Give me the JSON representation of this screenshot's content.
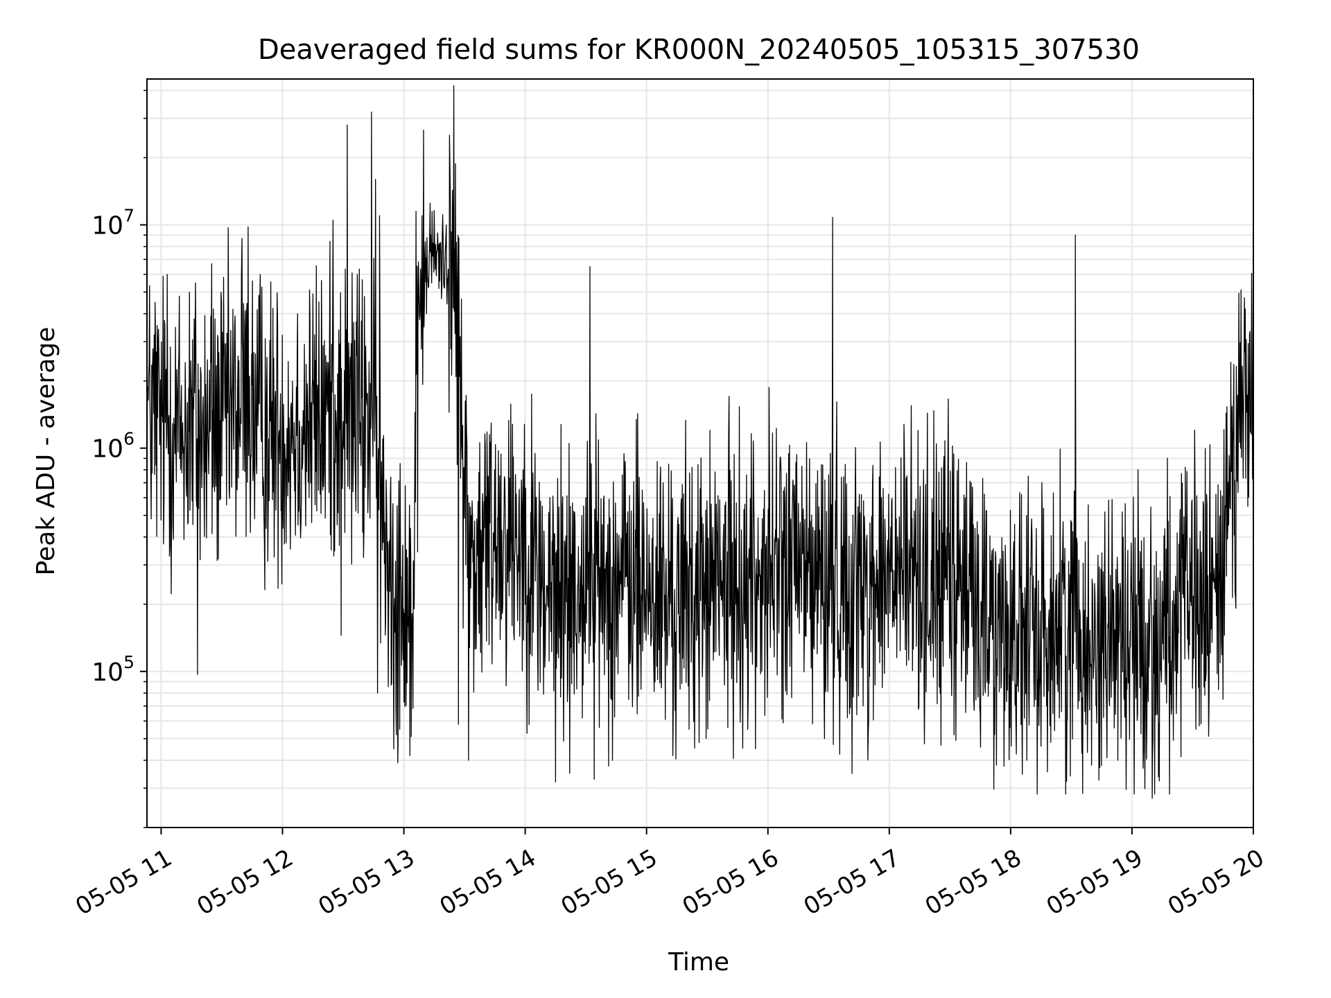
{
  "chart_data": {
    "type": "line",
    "title": "Deaveraged field sums for KR000N_20240505_105315_307530",
    "xlabel": "Time",
    "ylabel": "Peak ADU - average",
    "yscale": "log",
    "xlim": [
      "2024-05-05 10:53",
      "2024-05-05 20:00"
    ],
    "ylim": [
      20000,
      45000000
    ],
    "x_ticks": [
      "05-05 11",
      "05-05 12",
      "05-05 13",
      "05-05 14",
      "05-05 15",
      "05-05 16",
      "05-05 17",
      "05-05 18",
      "05-05 19",
      "05-05 20"
    ],
    "x_tick_times": [
      "2024-05-05 11:00",
      "2024-05-05 12:00",
      "2024-05-05 13:00",
      "2024-05-05 14:00",
      "2024-05-05 15:00",
      "2024-05-05 16:00",
      "2024-05-05 17:00",
      "2024-05-05 18:00",
      "2024-05-05 19:00",
      "2024-05-05 20:00"
    ],
    "y_ticks": [
      {
        "base": "10",
        "exp": "5",
        "value": 100000
      },
      {
        "base": "10",
        "exp": "6",
        "value": 1000000
      },
      {
        "base": "10",
        "exp": "7",
        "value": 10000000
      }
    ],
    "grid": true,
    "line_color": "#000000",
    "series": [
      {
        "x": [
          "2024-05-05 10:53",
          "2024-05-05 11:00",
          "2024-05-05 11:10",
          "2024-05-05 11:20",
          "2024-05-05 11:30",
          "2024-05-05 11:42",
          "2024-05-05 11:50",
          "2024-05-05 12:00",
          "2024-05-05 12:10",
          "2024-05-05 12:20",
          "2024-05-05 12:30",
          "2024-05-05 12:40",
          "2024-05-05 12:45",
          "2024-05-05 12:48",
          "2024-05-05 12:55",
          "2024-05-05 13:00",
          "2024-05-05 13:05",
          "2024-05-05 13:08",
          "2024-05-05 13:15",
          "2024-05-05 13:25",
          "2024-05-05 13:32",
          "2024-05-05 13:36",
          "2024-05-05 13:45",
          "2024-05-05 14:00",
          "2024-05-05 14:10",
          "2024-05-05 14:30",
          "2024-05-05 14:50",
          "2024-05-05 15:10",
          "2024-05-05 15:30",
          "2024-05-05 15:50",
          "2024-05-05 16:10",
          "2024-05-05 16:30",
          "2024-05-05 16:50",
          "2024-05-05 17:10",
          "2024-05-05 17:30",
          "2024-05-05 17:50",
          "2024-05-05 18:10",
          "2024-05-05 18:30",
          "2024-05-05 18:50",
          "2024-05-05 19:10",
          "2024-05-05 19:30",
          "2024-05-05 19:42",
          "2024-05-05 19:50",
          "2024-05-05 20:00"
        ],
        "y": [
          1500000,
          1300000,
          1200000,
          1100000,
          1300000,
          1600000,
          1200000,
          1200000,
          1300000,
          1400000,
          1500000,
          1300000,
          1500000,
          500000,
          300000,
          250000,
          200000,
          5000000,
          7500000,
          6500000,
          350000,
          300000,
          450000,
          400000,
          220000,
          250000,
          260000,
          200000,
          230000,
          260000,
          300000,
          250000,
          240000,
          280000,
          260000,
          180000,
          140000,
          170000,
          150000,
          140000,
          200000,
          200000,
          1200000,
          1600000
        ]
      }
    ],
    "spikes": [
      {
        "x": "2024-05-05 10:57",
        "y": 4500000
      },
      {
        "x": "2024-05-05 11:03",
        "y": 6000000
      },
      {
        "x": "2024-05-05 11:14",
        "y": 5000000
      },
      {
        "x": "2024-05-05 11:17",
        "y": 5500000
      },
      {
        "x": "2024-05-05 11:25",
        "y": 6700000
      },
      {
        "x": "2024-05-05 11:40",
        "y": 8700000
      },
      {
        "x": "2024-05-05 11:43",
        "y": 9800000
      },
      {
        "x": "2024-05-05 11:49",
        "y": 6000000
      },
      {
        "x": "2024-05-05 12:25",
        "y": 10500000
      },
      {
        "x": "2024-05-05 12:32",
        "y": 28000000
      },
      {
        "x": "2024-05-05 12:37",
        "y": 6000000
      },
      {
        "x": "2024-05-05 12:44",
        "y": 32000000
      },
      {
        "x": "2024-05-05 12:46",
        "y": 16000000
      },
      {
        "x": "2024-05-05 12:48",
        "y": 11000000
      },
      {
        "x": "2024-05-05 13:06",
        "y": 11500000
      },
      {
        "x": "2024-05-05 13:09",
        "y": 11000000
      },
      {
        "x": "2024-05-05 13:13",
        "y": 12500000
      },
      {
        "x": "2024-05-05 13:21",
        "y": 10000000
      },
      {
        "x": "2024-05-05 14:32",
        "y": 6500000
      },
      {
        "x": "2024-05-05 16:32",
        "y": 10800000
      },
      {
        "x": "2024-05-05 18:32",
        "y": 9000000
      },
      {
        "x": "2024-05-05 19:56",
        "y": 4200000
      }
    ],
    "dips": [
      {
        "x": "2024-05-05 11:18",
        "y": 97000
      },
      {
        "x": "2024-05-05 12:29",
        "y": 145000
      },
      {
        "x": "2024-05-05 12:47",
        "y": 80000
      },
      {
        "x": "2024-05-05 12:55",
        "y": 45000
      },
      {
        "x": "2024-05-05 12:57",
        "y": 39000
      },
      {
        "x": "2024-05-05 13:03",
        "y": 42000
      },
      {
        "x": "2024-05-05 13:27",
        "y": 58000
      },
      {
        "x": "2024-05-05 13:32",
        "y": 40000
      },
      {
        "x": "2024-05-05 14:15",
        "y": 32000
      },
      {
        "x": "2024-05-05 14:22",
        "y": 35000
      },
      {
        "x": "2024-05-05 15:13",
        "y": 42000
      },
      {
        "x": "2024-05-05 15:26",
        "y": 48000
      },
      {
        "x": "2024-05-05 15:50",
        "y": 55000
      },
      {
        "x": "2024-05-05 16:28",
        "y": 50000
      },
      {
        "x": "2024-05-05 17:32",
        "y": 52000
      },
      {
        "x": "2024-05-05 17:53",
        "y": 38000
      },
      {
        "x": "2024-05-05 18:08",
        "y": 40000
      },
      {
        "x": "2024-05-05 18:40",
        "y": 38000
      },
      {
        "x": "2024-05-05 18:53",
        "y": 40000
      },
      {
        "x": "2024-05-05 19:10",
        "y": 27000
      },
      {
        "x": "2024-05-05 19:45",
        "y": 75000
      }
    ]
  }
}
